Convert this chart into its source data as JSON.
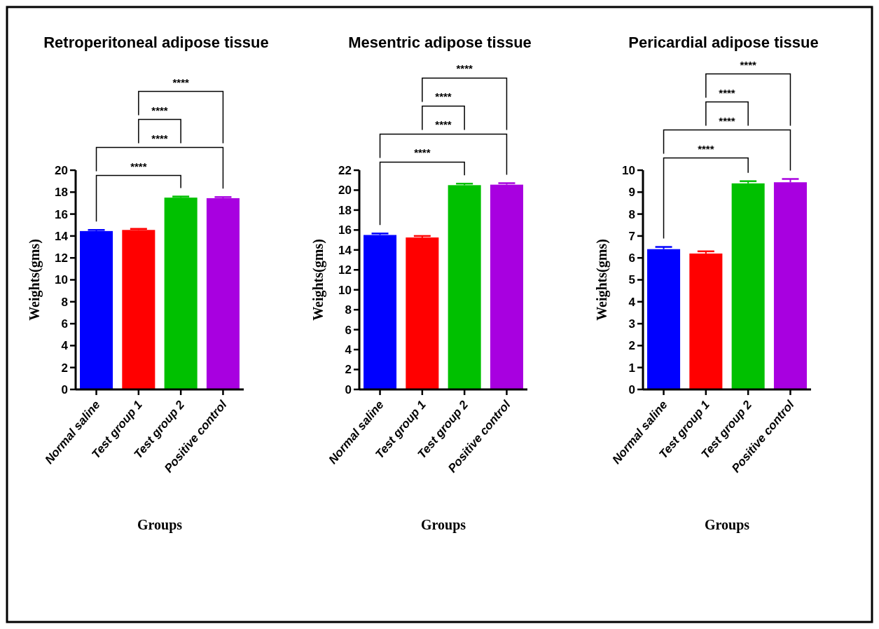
{
  "chart_data": [
    {
      "type": "bar",
      "title": "Retroperitoneal adipose tissue",
      "xlabel": "Groups",
      "ylabel": "Weights(gms)",
      "categories": [
        "Normal saline",
        "Test group 1",
        "Test group 2",
        "Positive control"
      ],
      "values": [
        14.45,
        14.55,
        17.5,
        17.45
      ],
      "errors": [
        0.1,
        0.1,
        0.1,
        0.1
      ],
      "colors": [
        "#0000ff",
        "#ff0000",
        "#00c000",
        "#a800e0"
      ],
      "ylim": [
        0,
        20
      ],
      "yticks": [
        0,
        2,
        4,
        6,
        8,
        10,
        12,
        14,
        16,
        18,
        20
      ],
      "annotations": [
        "****",
        "****",
        "****",
        "****"
      ]
    },
    {
      "type": "bar",
      "title": "Mesentric adipose tissue",
      "xlabel": "Groups",
      "ylabel": "Weights(gms)",
      "categories": [
        "Normal saline",
        "Test group 1",
        "Test group 2",
        "Positive control"
      ],
      "values": [
        15.5,
        15.25,
        20.5,
        20.55
      ],
      "errors": [
        0.15,
        0.15,
        0.15,
        0.15
      ],
      "colors": [
        "#0000ff",
        "#ff0000",
        "#00c000",
        "#a800e0"
      ],
      "ylim": [
        0,
        22
      ],
      "yticks": [
        0,
        2,
        4,
        6,
        8,
        10,
        12,
        14,
        16,
        18,
        20,
        22
      ],
      "annotations": [
        "****",
        "****",
        "****",
        "****"
      ]
    },
    {
      "type": "bar",
      "title": "Pericardial adipose tissue",
      "xlabel": "Groups",
      "ylabel": "Weights(gms)",
      "categories": [
        "Normal saline",
        "Test group 1",
        "Test group 2",
        "Positive control"
      ],
      "values": [
        6.4,
        6.2,
        9.4,
        9.45
      ],
      "errors": [
        0.1,
        0.1,
        0.1,
        0.15
      ],
      "colors": [
        "#0000ff",
        "#ff0000",
        "#00c000",
        "#a800e0"
      ],
      "ylim": [
        0,
        10
      ],
      "yticks": [
        0,
        1,
        2,
        3,
        4,
        5,
        6,
        7,
        8,
        9,
        10
      ],
      "annotations": [
        "****",
        "****",
        "****",
        "****"
      ]
    }
  ]
}
